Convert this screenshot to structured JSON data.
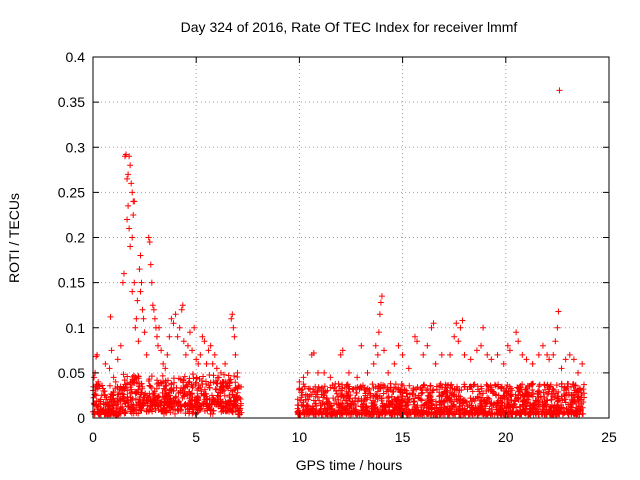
{
  "chart_data": {
    "type": "scatter",
    "title": "Day 324 of 2016, Rate Of TEC Index for receiver lmmf",
    "xlabel": "GPS time / hours",
    "ylabel": "ROTI / TECUs",
    "xlim": [
      0,
      25
    ],
    "ylim": [
      0,
      0.4
    ],
    "x_ticks": [
      0,
      5,
      10,
      15,
      20,
      25
    ],
    "x_tick_labels": [
      "0",
      "5",
      "10",
      "15",
      "20",
      "25"
    ],
    "y_ticks": [
      0,
      0.05,
      0.1,
      0.15,
      0.2,
      0.25,
      0.3,
      0.35,
      0.4
    ],
    "y_tick_labels": [
      "0",
      "0.05",
      "0.1",
      "0.15",
      "0.2",
      "0.25",
      "0.3",
      "0.35",
      "0.4"
    ],
    "grid": true,
    "marker": "+",
    "marker_color": "#ff0000",
    "data_gap_hours": [
      7.2,
      9.9
    ],
    "series": [
      {
        "name": "ROTI",
        "points": [
          [
            0.05,
            0.045
          ],
          [
            0.1,
            0.05
          ],
          [
            0.15,
            0.068
          ],
          [
            0.2,
            0.07
          ],
          [
            0.25,
            0.04
          ],
          [
            0.3,
            0.035
          ],
          [
            0.5,
            0.03
          ],
          [
            0.6,
            0.06
          ],
          [
            0.8,
            0.055
          ],
          [
            0.85,
            0.112
          ],
          [
            0.9,
            0.075
          ],
          [
            1.0,
            0.045
          ],
          [
            1.1,
            0.04
          ],
          [
            1.2,
            0.065
          ],
          [
            1.35,
            0.08
          ],
          [
            1.45,
            0.15
          ],
          [
            1.5,
            0.16
          ],
          [
            1.55,
            0.29
          ],
          [
            1.6,
            0.292
          ],
          [
            1.65,
            0.265
          ],
          [
            1.65,
            0.22
          ],
          [
            1.7,
            0.27
          ],
          [
            1.75,
            0.29
          ],
          [
            1.7,
            0.235
          ],
          [
            1.75,
            0.21
          ],
          [
            1.8,
            0.28
          ],
          [
            1.8,
            0.19
          ],
          [
            1.85,
            0.26
          ],
          [
            1.9,
            0.25
          ],
          [
            1.95,
            0.24
          ],
          [
            1.9,
            0.2
          ],
          [
            1.95,
            0.225
          ],
          [
            2.0,
            0.24
          ],
          [
            1.9,
            0.14
          ],
          [
            2.0,
            0.15
          ],
          [
            2.05,
            0.1
          ],
          [
            2.1,
            0.11
          ],
          [
            2.15,
            0.13
          ],
          [
            2.2,
            0.085
          ],
          [
            2.25,
            0.165
          ],
          [
            2.3,
            0.18
          ],
          [
            2.3,
            0.14
          ],
          [
            2.35,
            0.15
          ],
          [
            2.4,
            0.12
          ],
          [
            2.45,
            0.11
          ],
          [
            2.5,
            0.095
          ],
          [
            2.6,
            0.07
          ],
          [
            2.7,
            0.2
          ],
          [
            2.75,
            0.195
          ],
          [
            2.8,
            0.17
          ],
          [
            2.85,
            0.15
          ],
          [
            2.9,
            0.125
          ],
          [
            2.95,
            0.12
          ],
          [
            3.0,
            0.11
          ],
          [
            3.05,
            0.1
          ],
          [
            3.1,
            0.09
          ],
          [
            3.15,
            0.08
          ],
          [
            3.2,
            0.1
          ],
          [
            3.3,
            0.075
          ],
          [
            3.4,
            0.06
          ],
          [
            3.5,
            0.055
          ],
          [
            3.6,
            0.07
          ],
          [
            3.7,
            0.09
          ],
          [
            3.8,
            0.11
          ],
          [
            3.9,
            0.105
          ],
          [
            4.0,
            0.115
          ],
          [
            4.1,
            0.09
          ],
          [
            4.2,
            0.1
          ],
          [
            4.3,
            0.12
          ],
          [
            4.35,
            0.125
          ],
          [
            4.4,
            0.085
          ],
          [
            4.5,
            0.07
          ],
          [
            4.6,
            0.08
          ],
          [
            4.7,
            0.095
          ],
          [
            4.8,
            0.075
          ],
          [
            4.9,
            0.1
          ],
          [
            5.0,
            0.065
          ],
          [
            5.1,
            0.06
          ],
          [
            5.2,
            0.07
          ],
          [
            5.3,
            0.09
          ],
          [
            5.4,
            0.085
          ],
          [
            5.5,
            0.06
          ],
          [
            5.6,
            0.075
          ],
          [
            5.7,
            0.08
          ],
          [
            5.8,
            0.06
          ],
          [
            5.9,
            0.07
          ],
          [
            6.0,
            0.055
          ],
          [
            6.1,
            0.045
          ],
          [
            6.2,
            0.05
          ],
          [
            6.3,
            0.04
          ],
          [
            6.4,
            0.06
          ],
          [
            6.5,
            0.035
          ],
          [
            6.6,
            0.04
          ],
          [
            6.7,
            0.11
          ],
          [
            6.75,
            0.115
          ],
          [
            6.8,
            0.1
          ],
          [
            6.85,
            0.09
          ],
          [
            6.9,
            0.07
          ],
          [
            7.0,
            0.05
          ],
          [
            10.0,
            0.04
          ],
          [
            10.2,
            0.045
          ],
          [
            10.4,
            0.05
          ],
          [
            10.6,
            0.07
          ],
          [
            10.7,
            0.072
          ],
          [
            10.9,
            0.05
          ],
          [
            11.2,
            0.05
          ],
          [
            11.5,
            0.045
          ],
          [
            12.0,
            0.07
          ],
          [
            12.1,
            0.075
          ],
          [
            12.4,
            0.05
          ],
          [
            12.8,
            0.045
          ],
          [
            13.0,
            0.08
          ],
          [
            13.3,
            0.05
          ],
          [
            13.6,
            0.06
          ],
          [
            13.7,
            0.08
          ],
          [
            13.8,
            0.07
          ],
          [
            13.85,
            0.095
          ],
          [
            13.9,
            0.115
          ],
          [
            13.95,
            0.128
          ],
          [
            14.0,
            0.135
          ],
          [
            14.1,
            0.075
          ],
          [
            14.3,
            0.05
          ],
          [
            14.6,
            0.06
          ],
          [
            14.8,
            0.08
          ],
          [
            15.0,
            0.07
          ],
          [
            15.3,
            0.055
          ],
          [
            15.6,
            0.09
          ],
          [
            15.7,
            0.085
          ],
          [
            16.0,
            0.07
          ],
          [
            16.2,
            0.08
          ],
          [
            16.4,
            0.1
          ],
          [
            16.5,
            0.105
          ],
          [
            16.6,
            0.06
          ],
          [
            16.9,
            0.07
          ],
          [
            17.3,
            0.07
          ],
          [
            17.5,
            0.09
          ],
          [
            17.6,
            0.105
          ],
          [
            17.7,
            0.085
          ],
          [
            17.8,
            0.1
          ],
          [
            17.9,
            0.108
          ],
          [
            18.0,
            0.07
          ],
          [
            18.3,
            0.065
          ],
          [
            18.6,
            0.075
          ],
          [
            18.8,
            0.08
          ],
          [
            18.9,
            0.1
          ],
          [
            19.1,
            0.07
          ],
          [
            19.3,
            0.065
          ],
          [
            19.6,
            0.07
          ],
          [
            19.9,
            0.06
          ],
          [
            20.1,
            0.08
          ],
          [
            20.2,
            0.075
          ],
          [
            20.5,
            0.095
          ],
          [
            20.6,
            0.085
          ],
          [
            20.8,
            0.07
          ],
          [
            21.0,
            0.065
          ],
          [
            21.3,
            0.06
          ],
          [
            21.6,
            0.07
          ],
          [
            21.8,
            0.08
          ],
          [
            22.0,
            0.07
          ],
          [
            22.1,
            0.065
          ],
          [
            22.3,
            0.07
          ],
          [
            22.4,
            0.085
          ],
          [
            22.5,
            0.1
          ],
          [
            22.55,
            0.118
          ],
          [
            22.6,
            0.363
          ],
          [
            22.7,
            0.055
          ],
          [
            22.9,
            0.065
          ],
          [
            23.1,
            0.07
          ],
          [
            23.3,
            0.065
          ],
          [
            23.5,
            0.05
          ],
          [
            23.7,
            0.06
          ]
        ]
      }
    ]
  }
}
